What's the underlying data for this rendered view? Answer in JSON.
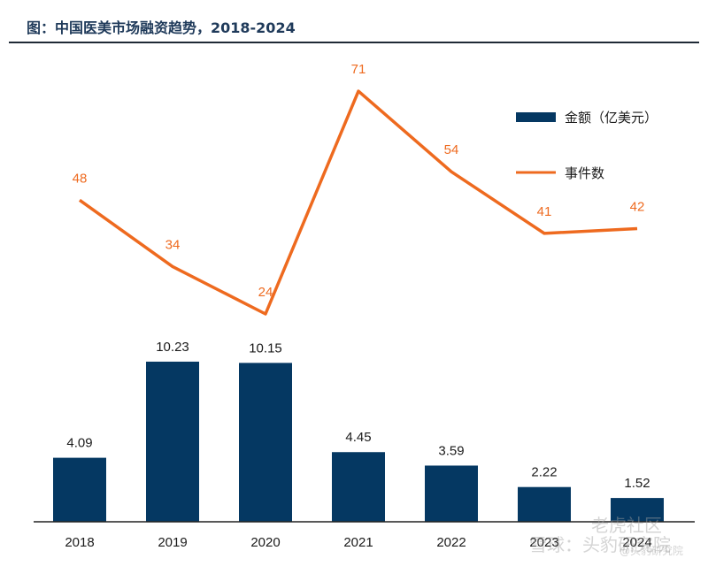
{
  "title": "图：中国医美市场融资趋势，2018-2024",
  "watermarks": [
    "老虎社区",
    "雪球：头豹研究院",
    "@头豹研究院"
  ],
  "chart_data": {
    "type": "bar+line",
    "title": "图：中国医美市场融资趋势，2018-2024",
    "categories": [
      "2018",
      "2019",
      "2020",
      "2021",
      "2022",
      "2023",
      "2024"
    ],
    "series": [
      {
        "name": "金额（亿美元）",
        "type": "bar",
        "color": "#053862",
        "values": [
          4.09,
          10.23,
          10.15,
          4.45,
          3.59,
          2.22,
          1.52
        ],
        "labels": [
          "4.09",
          "10.23",
          "10.15",
          "4.45",
          "3.59",
          "2.22",
          "1.52"
        ]
      },
      {
        "name": "事件数",
        "type": "line",
        "color": "#ee6a1f",
        "values": [
          48,
          34,
          24,
          71,
          54,
          41,
          42
        ],
        "labels": [
          "48",
          "34",
          "24",
          "71",
          "54",
          "41",
          "42"
        ]
      }
    ],
    "legend": "top-right",
    "grid": false
  }
}
